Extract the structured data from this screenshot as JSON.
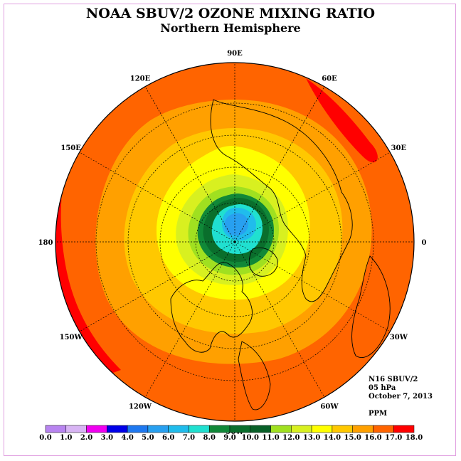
{
  "title": "NOAA SBUV/2 OZONE MIXING RATIO",
  "subtitle": "Northern Hemisphere",
  "info": {
    "instrument": "N16 SBUV/2",
    "level": "05 hPa",
    "date": "October 7, 2013",
    "units": "PPM"
  },
  "longitude_labels": [
    "90E",
    "60E",
    "30E",
    "0",
    "30W",
    "60W",
    "90W",
    "120W",
    "150W",
    "180",
    "150E",
    "120E"
  ],
  "colorbar": {
    "ticks": [
      "0.0",
      "1.0",
      "2.0",
      "3.0",
      "4.0",
      "5.0",
      "6.0",
      "7.0",
      "8.0",
      "9.0",
      "10.0",
      "11.0",
      "12.0",
      "13.0",
      "14.0",
      "15.0",
      "16.0",
      "17.0",
      "18.0"
    ],
    "colors": [
      "#b884f0",
      "#d8b4f4",
      "#f000f0",
      "#0000e8",
      "#1e78f0",
      "#28a0f0",
      "#20bcec",
      "#20e0d0",
      "#108838",
      "#0a6e2c",
      "#086028",
      "#a0e020",
      "#d8f020",
      "#ffff00",
      "#ffc800",
      "#ffa000",
      "#ff6400",
      "#ff0000",
      "#8c4c30"
    ]
  },
  "field_colors": {
    "outer": "#ff6400",
    "red_band": "#ff0000",
    "orange_light": "#ffa000",
    "gold": "#ffc800",
    "yellow": "#ffff00",
    "yellow_green": "#d8f020",
    "light_green": "#a0e020",
    "green": "#108838",
    "dark_green": "#0a6e2c",
    "cyan": "#20e0d0",
    "sky": "#20bcec",
    "blue": "#28a0f0"
  }
}
